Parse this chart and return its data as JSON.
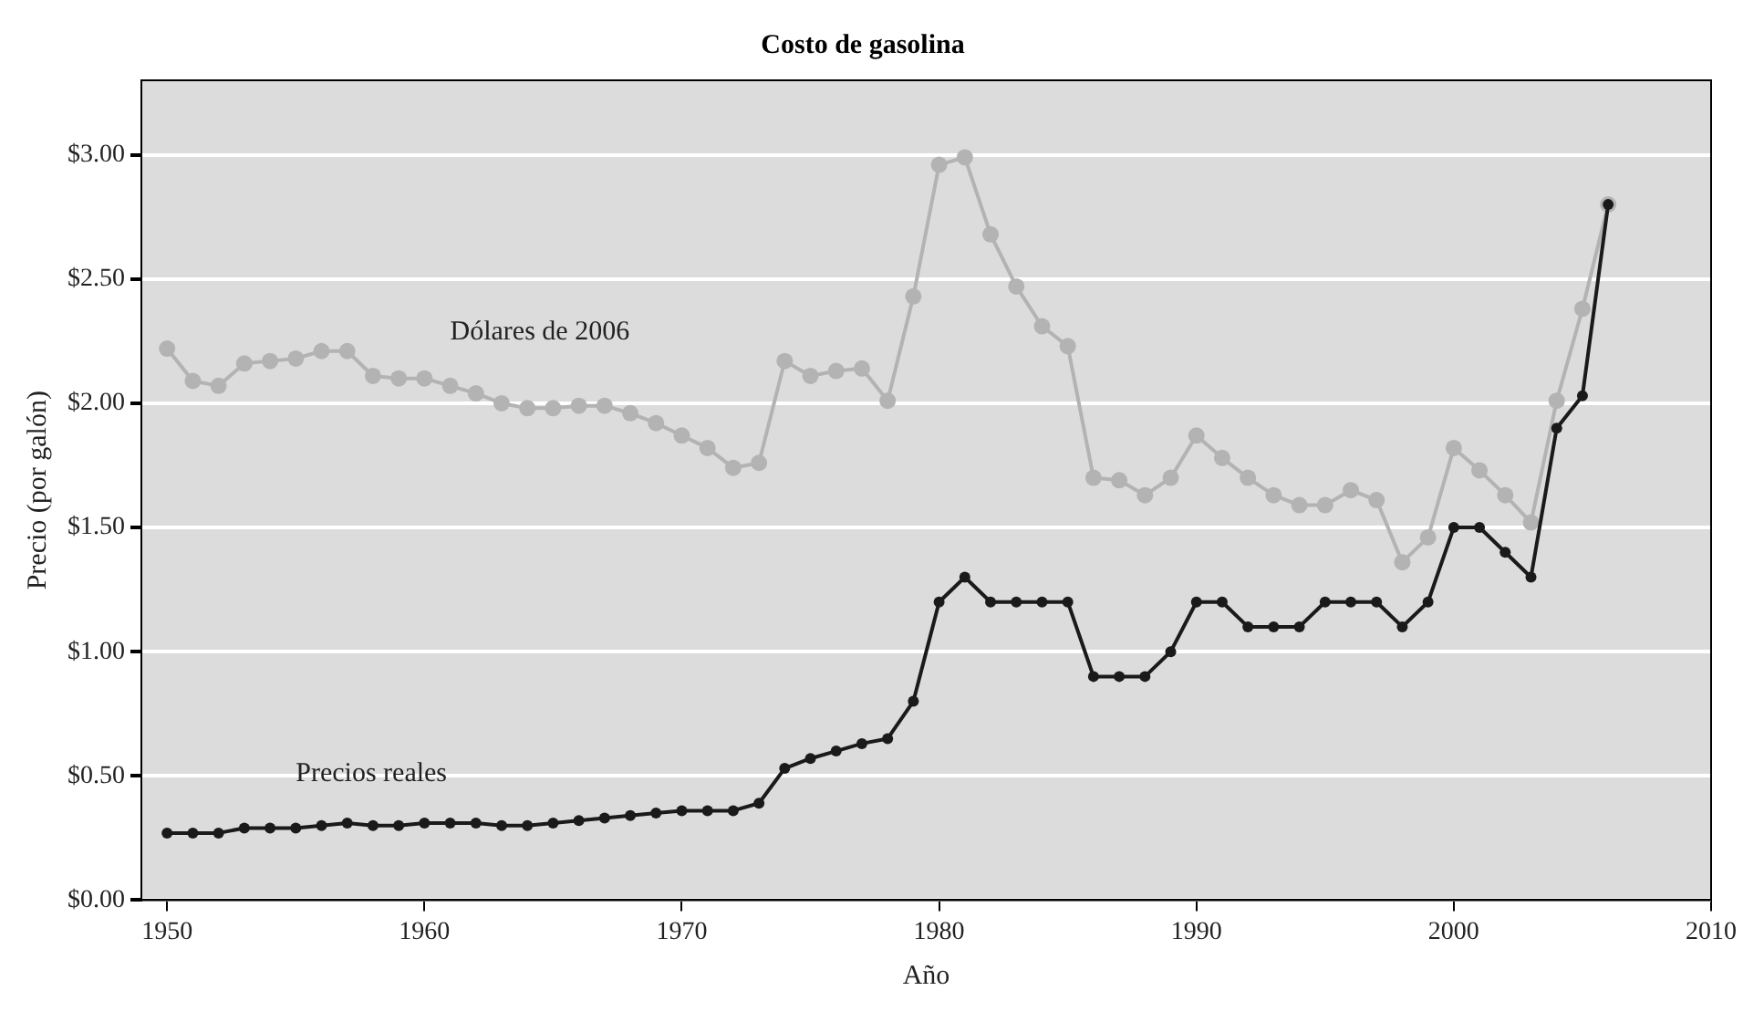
{
  "chart_data": {
    "type": "line",
    "title": "Costo de gasolina",
    "xlabel": "Año",
    "ylabel": "Precio (por galón)",
    "x": [
      1950,
      1951,
      1952,
      1953,
      1954,
      1955,
      1956,
      1957,
      1958,
      1959,
      1960,
      1961,
      1962,
      1963,
      1964,
      1965,
      1966,
      1967,
      1968,
      1969,
      1970,
      1971,
      1972,
      1973,
      1974,
      1975,
      1976,
      1977,
      1978,
      1979,
      1980,
      1981,
      1982,
      1983,
      1984,
      1985,
      1986,
      1987,
      1988,
      1989,
      1990,
      1991,
      1992,
      1993,
      1994,
      1995,
      1996,
      1997,
      1998,
      1999,
      2000,
      2001,
      2002,
      2003,
      2004,
      2005,
      2006
    ],
    "series": [
      {
        "name": "Dólares de 2006",
        "color": "#b3b3b3",
        "values": [
          2.22,
          2.09,
          2.07,
          2.16,
          2.17,
          2.18,
          2.21,
          2.21,
          2.11,
          2.1,
          2.1,
          2.07,
          2.04,
          2.0,
          1.98,
          1.98,
          1.99,
          1.99,
          1.96,
          1.92,
          1.87,
          1.82,
          1.74,
          1.76,
          2.17,
          2.11,
          2.13,
          2.14,
          2.01,
          2.43,
          2.96,
          2.99,
          2.68,
          2.47,
          2.31,
          2.23,
          1.7,
          1.69,
          1.63,
          1.7,
          1.87,
          1.78,
          1.7,
          1.63,
          1.59,
          1.59,
          1.65,
          1.61,
          1.36,
          1.46,
          1.82,
          1.73,
          1.63,
          1.52,
          2.01,
          2.38,
          2.8
        ]
      },
      {
        "name": "Precios reales",
        "color": "#1a1a1a",
        "values": [
          0.27,
          0.27,
          0.27,
          0.29,
          0.29,
          0.29,
          0.3,
          0.31,
          0.3,
          0.3,
          0.31,
          0.31,
          0.31,
          0.3,
          0.3,
          0.31,
          0.32,
          0.33,
          0.34,
          0.35,
          0.36,
          0.36,
          0.36,
          0.39,
          0.53,
          0.57,
          0.6,
          0.63,
          0.65,
          0.8,
          1.2,
          1.3,
          1.2,
          1.2,
          1.2,
          1.2,
          0.9,
          0.9,
          0.9,
          1.0,
          1.2,
          1.2,
          1.1,
          1.1,
          1.1,
          1.2,
          1.2,
          1.2,
          1.1,
          1.2,
          1.5,
          1.5,
          1.4,
          1.3,
          1.9,
          2.03,
          2.8
        ]
      }
    ],
    "xlim": [
      1949,
      2010
    ],
    "xticks": [
      1950,
      1960,
      1970,
      1980,
      1990,
      2000,
      2010
    ],
    "ylim": [
      0,
      3.3
    ],
    "yticks": [
      {
        "value": 0,
        "label": "$0.00"
      },
      {
        "value": 0.5,
        "label": "$0.50"
      },
      {
        "value": 1,
        "label": "$1.00"
      },
      {
        "value": 1.5,
        "label": "$1.50"
      },
      {
        "value": 2,
        "label": "$2.00"
      },
      {
        "value": 2.5,
        "label": "$2.50"
      },
      {
        "value": 3,
        "label": "$3.00"
      }
    ],
    "grid": "y",
    "legend": false,
    "marker": "circle",
    "line_style": "solid"
  }
}
